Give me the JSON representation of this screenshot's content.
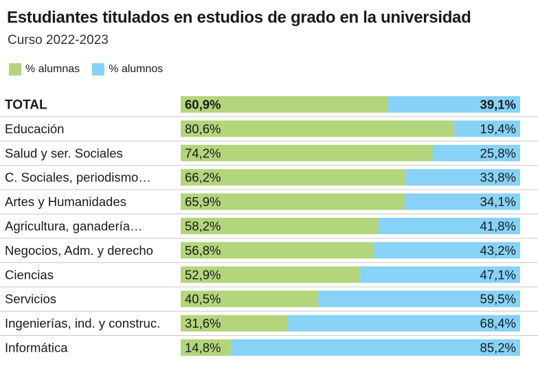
{
  "colors": {
    "alumnas": "#b3d57c",
    "alumnos": "#87d2f6",
    "divider": "#c8c8c8"
  },
  "chart_data": {
    "type": "bar",
    "stacked": true,
    "orientation": "horizontal",
    "normalized_percent": true,
    "title": "Estudiantes titulados en estudios de grado en la universidad",
    "subtitle": "Curso 2022-2023",
    "legend": [
      "% alumnas",
      "% alumnos"
    ],
    "categories": [
      "TOTAL",
      "Educación",
      "Salud y ser. Sociales",
      "C. Sociales, periodismo…",
      "Artes y Humanidades",
      "Agricultura, ganadería…",
      "Negocios, Adm. y derecho",
      "Ciencias",
      "Servicios",
      "Ingenierías, ind. y construc.",
      "Informática"
    ],
    "series": [
      {
        "name": "% alumnas",
        "values": [
          60.9,
          80.6,
          74.2,
          66.2,
          65.9,
          58.2,
          56.8,
          52.9,
          40.5,
          31.6,
          14.8
        ],
        "labels": [
          "60,9%",
          "80,6%",
          "74,2%",
          "66,2%",
          "65,9%",
          "58,2%",
          "56,8%",
          "52,9%",
          "40,5%",
          "31,6%",
          "14,8%"
        ]
      },
      {
        "name": "% alumnos",
        "values": [
          39.1,
          19.4,
          25.8,
          33.8,
          34.1,
          41.8,
          43.2,
          47.1,
          59.5,
          68.4,
          85.2
        ],
        "labels": [
          "39,1%",
          "19,4%",
          "25,8%",
          "33,8%",
          "34,1%",
          "41,8%",
          "43,2%",
          "47,1%",
          "59,5%",
          "68,4%",
          "85,2%"
        ]
      }
    ],
    "xlim": [
      0,
      100
    ]
  }
}
